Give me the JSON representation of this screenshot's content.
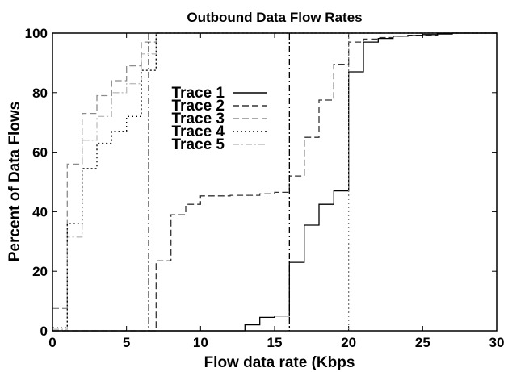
{
  "chart_data": {
    "type": "line",
    "title": "Outbound Data Flow Rates",
    "xlabel": "Flow data rate (Kbps",
    "ylabel": "Percent of Data Flows",
    "xlim": [
      0,
      30
    ],
    "ylim": [
      0,
      100
    ],
    "x_ticks": [
      0,
      5,
      10,
      15,
      20,
      25,
      30
    ],
    "y_ticks": [
      0,
      20,
      40,
      60,
      80,
      100
    ],
    "x_tick_labels": [
      "0",
      "5",
      "10",
      "15",
      "20",
      "25",
      "30"
    ],
    "y_tick_labels": [
      "0",
      "20",
      "40",
      "60",
      "80",
      "100"
    ],
    "step": true,
    "legend_position": "upper-left-center",
    "series": [
      {
        "name": "Trace 1",
        "style": "solid",
        "color": "#000000",
        "points": [
          [
            0,
            0
          ],
          [
            13,
            0
          ],
          [
            13,
            2
          ],
          [
            14,
            2
          ],
          [
            14,
            4.5
          ],
          [
            15,
            4.5
          ],
          [
            15,
            5
          ],
          [
            16,
            5
          ],
          [
            16,
            23
          ],
          [
            17,
            23
          ],
          [
            17,
            35.5
          ],
          [
            18,
            35.5
          ],
          [
            18,
            42.5
          ],
          [
            19,
            42.5
          ],
          [
            19,
            47
          ],
          [
            20,
            47
          ],
          [
            20,
            87
          ],
          [
            21,
            87
          ],
          [
            21,
            97
          ],
          [
            22,
            97
          ],
          [
            22,
            98.2
          ],
          [
            23,
            98.2
          ],
          [
            23,
            99
          ],
          [
            24,
            99
          ],
          [
            24,
            99.2
          ],
          [
            25,
            99.2
          ],
          [
            25,
            99.5
          ],
          [
            26,
            99.5
          ],
          [
            26,
            99.7
          ],
          [
            27,
            99.7
          ],
          [
            27,
            100
          ],
          [
            30,
            100
          ]
        ]
      },
      {
        "name": "Trace 2",
        "style": "dashed",
        "color": "#333333",
        "points": [
          [
            0,
            0
          ],
          [
            7,
            0
          ],
          [
            7,
            23.5
          ],
          [
            8,
            23.5
          ],
          [
            8,
            39
          ],
          [
            9,
            39
          ],
          [
            9,
            42.5
          ],
          [
            10,
            42.5
          ],
          [
            10,
            45.3
          ],
          [
            12,
            45.3
          ],
          [
            12,
            45.5
          ],
          [
            14,
            45.5
          ],
          [
            14,
            46
          ],
          [
            15,
            46
          ],
          [
            15,
            46.5
          ],
          [
            16,
            46.5
          ],
          [
            16,
            52
          ],
          [
            17,
            52
          ],
          [
            17,
            65
          ],
          [
            18,
            65
          ],
          [
            18,
            77.5
          ],
          [
            19,
            77.5
          ],
          [
            19,
            89.5
          ],
          [
            20,
            89.5
          ],
          [
            20,
            97
          ],
          [
            21,
            97
          ],
          [
            21,
            98
          ],
          [
            22,
            98
          ],
          [
            22,
            98.5
          ],
          [
            23,
            98.5
          ],
          [
            23,
            99
          ],
          [
            24,
            99
          ],
          [
            24,
            99.3
          ],
          [
            26,
            99.3
          ],
          [
            26,
            100
          ],
          [
            30,
            100
          ]
        ]
      },
      {
        "name": "Trace 3",
        "style": "dashed",
        "color": "#8c8c8c",
        "points": [
          [
            0,
            7.5
          ],
          [
            1,
            7.5
          ],
          [
            1,
            56
          ],
          [
            2,
            56
          ],
          [
            2,
            73
          ],
          [
            3,
            73
          ],
          [
            3,
            79
          ],
          [
            4,
            79
          ],
          [
            4,
            84
          ],
          [
            5,
            84
          ],
          [
            5,
            89
          ],
          [
            6,
            89
          ],
          [
            6,
            97
          ],
          [
            7,
            97
          ],
          [
            7,
            100
          ],
          [
            30,
            100
          ]
        ]
      },
      {
        "name": "Trace 4",
        "style": "dotted",
        "color": "#000000",
        "points": [
          [
            0,
            1
          ],
          [
            1,
            1
          ],
          [
            1,
            36
          ],
          [
            2,
            36
          ],
          [
            2,
            54.5
          ],
          [
            3,
            54.5
          ],
          [
            3,
            63
          ],
          [
            4,
            63
          ],
          [
            4,
            67
          ],
          [
            5,
            67
          ],
          [
            5,
            72
          ],
          [
            6,
            72
          ],
          [
            6,
            87.5
          ],
          [
            7,
            87.5
          ],
          [
            7,
            100
          ],
          [
            30,
            100
          ]
        ]
      },
      {
        "name": "Trace 5",
        "style": "dashdot",
        "color": "#bdbdbd",
        "points": [
          [
            0,
            0.5
          ],
          [
            1,
            0.5
          ],
          [
            1,
            31.5
          ],
          [
            2,
            31.5
          ],
          [
            2,
            64
          ],
          [
            3,
            64
          ],
          [
            3,
            72
          ],
          [
            4,
            72
          ],
          [
            4,
            80
          ],
          [
            5,
            80
          ],
          [
            5,
            83
          ],
          [
            6,
            83
          ],
          [
            6,
            93
          ],
          [
            7,
            93
          ],
          [
            7,
            100
          ],
          [
            30,
            100
          ]
        ]
      }
    ],
    "vertical_lines": [
      {
        "x": 6.5,
        "style": "dashdot",
        "color": "#000000"
      },
      {
        "x": 16,
        "style": "dashdot",
        "color": "#000000"
      },
      {
        "x": 20,
        "style": "dotted",
        "color": "#7a7a7a"
      }
    ]
  }
}
